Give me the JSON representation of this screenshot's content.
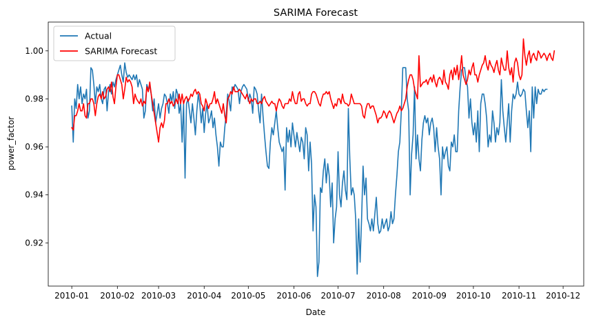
{
  "chart_data": {
    "type": "line",
    "title": "SARIMA Forecast",
    "xlabel": "Date",
    "ylabel": "power_factor",
    "x_range": [
      "2009-12-16",
      "2010-12-15"
    ],
    "ylim": [
      0.902,
      1.012
    ],
    "x_ticks": [
      "2010-01-01",
      "2010-02-01",
      "2010-03-01",
      "2010-04-01",
      "2010-05-01",
      "2010-06-01",
      "2010-07-01",
      "2010-08-01",
      "2010-09-01",
      "2010-10-01",
      "2010-11-01",
      "2010-12-01"
    ],
    "x_tick_labels": [
      "2010-01",
      "2010-02",
      "2010-03",
      "2010-04",
      "2010-05",
      "2010-06",
      "2010-07",
      "2010-08",
      "2010-09",
      "2010-10",
      "2010-11",
      "2010-12"
    ],
    "y_ticks": [
      0.92,
      0.94,
      0.96,
      0.98,
      1.0
    ],
    "y_tick_labels": [
      "0.92",
      "0.94",
      "0.96",
      "0.98",
      "1.00"
    ],
    "grid": false,
    "legend_position": "upper-left",
    "series": [
      {
        "name": "Actual",
        "color": "#1f77b4",
        "x_start": "2010-01-01",
        "x_step_days": 1,
        "values": [
          0.977,
          0.962,
          0.98,
          0.976,
          0.986,
          0.98,
          0.985,
          0.978,
          0.982,
          0.98,
          0.984,
          0.972,
          0.975,
          0.993,
          0.992,
          0.986,
          0.978,
          0.985,
          0.983,
          0.986,
          0.98,
          0.978,
          0.984,
          0.985,
          0.975,
          0.983,
          0.986,
          0.982,
          0.987,
          0.985,
          0.988,
          0.99,
          0.992,
          0.994,
          0.99,
          0.987,
          0.995,
          0.991,
          0.989,
          0.99,
          0.989,
          0.988,
          0.99,
          0.988,
          0.99,
          0.985,
          0.988,
          0.986,
          0.984,
          0.972,
          0.975,
          0.986,
          0.984,
          0.985,
          0.982,
          0.975,
          0.98,
          0.97,
          0.974,
          0.978,
          0.972,
          0.976,
          0.978,
          0.982,
          0.981,
          0.978,
          0.974,
          0.982,
          0.979,
          0.983,
          0.976,
          0.984,
          0.982,
          0.974,
          0.978,
          0.962,
          0.978,
          0.947,
          0.978,
          0.98,
          0.975,
          0.97,
          0.978,
          0.972,
          0.965,
          0.975,
          0.982,
          0.978,
          0.97,
          0.976,
          0.966,
          0.974,
          0.978,
          0.97,
          0.972,
          0.975,
          0.968,
          0.972,
          0.965,
          0.96,
          0.952,
          0.962,
          0.96,
          0.96,
          0.968,
          0.974,
          0.982,
          0.979,
          0.975,
          0.985,
          0.984,
          0.986,
          0.985,
          0.984,
          0.978,
          0.983,
          0.985,
          0.986,
          0.985,
          0.984,
          0.979,
          0.982,
          0.98,
          0.974,
          0.985,
          0.984,
          0.982,
          0.975,
          0.97,
          0.982,
          0.973,
          0.965,
          0.958,
          0.952,
          0.951,
          0.962,
          0.968,
          0.965,
          0.97,
          0.975,
          0.968,
          0.962,
          0.96,
          0.958,
          0.96,
          0.942,
          0.968,
          0.962,
          0.967,
          0.96,
          0.97,
          0.965,
          0.96,
          0.966,
          0.962,
          0.958,
          0.964,
          0.962,
          0.955,
          0.968,
          0.965,
          0.95,
          0.962,
          0.953,
          0.925,
          0.94,
          0.935,
          0.906,
          0.912,
          0.943,
          0.941,
          0.95,
          0.955,
          0.945,
          0.953,
          0.948,
          0.935,
          0.945,
          0.92,
          0.93,
          0.935,
          0.958,
          0.94,
          0.935,
          0.945,
          0.95,
          0.942,
          0.938,
          0.976,
          0.955,
          0.94,
          0.943,
          0.94,
          0.93,
          0.907,
          0.93,
          0.912,
          0.93,
          0.952,
          0.94,
          0.947,
          0.93,
          0.928,
          0.925,
          0.93,
          0.925,
          0.932,
          0.939,
          0.928,
          0.924,
          0.925,
          0.93,
          0.926,
          0.928,
          0.93,
          0.925,
          0.927,
          0.933,
          0.928,
          0.93,
          0.94,
          0.948,
          0.958,
          0.962,
          0.975,
          0.993,
          0.993,
          0.993,
          0.98,
          0.975,
          0.94,
          0.957,
          0.965,
          0.985,
          0.955,
          0.965,
          0.955,
          0.95,
          0.963,
          0.97,
          0.973,
          0.97,
          0.972,
          0.965,
          0.97,
          0.972,
          0.968,
          0.958,
          0.968,
          0.96,
          0.955,
          0.94,
          0.96,
          0.955,
          0.958,
          0.96,
          0.952,
          0.95,
          0.962,
          0.96,
          0.965,
          0.958,
          0.958,
          0.975,
          0.985,
          0.992,
          0.993,
          0.993,
          0.988,
          0.985,
          0.972,
          0.98,
          0.97,
          0.965,
          0.97,
          0.962,
          0.975,
          0.958,
          0.978,
          0.982,
          0.982,
          0.978,
          0.972,
          0.96,
          0.965,
          0.962,
          0.975,
          0.97,
          0.962,
          0.968,
          0.965,
          0.97,
          0.988,
          0.975,
          0.968,
          0.962,
          0.97,
          0.978,
          0.962,
          0.975,
          0.982,
          0.98,
          0.982,
          0.987,
          0.982,
          0.981,
          0.982,
          0.984,
          0.983,
          0.975,
          0.968,
          0.975,
          0.958,
          0.985,
          0.972,
          0.985,
          0.978,
          0.984,
          0.982,
          0.982,
          0.984,
          0.983,
          0.984,
          0.984
        ]
      },
      {
        "name": "SARIMA Forecast",
        "color": "#ff0000",
        "x_start": "2010-01-01",
        "x_step_days": 1,
        "values": [
          0.968,
          0.967,
          0.973,
          0.973,
          0.975,
          0.978,
          0.975,
          0.975,
          0.978,
          0.973,
          0.972,
          0.978,
          0.978,
          0.98,
          0.98,
          0.978,
          0.973,
          0.978,
          0.981,
          0.982,
          0.98,
          0.983,
          0.98,
          0.981,
          0.984,
          0.985,
          0.983,
          0.987,
          0.981,
          0.978,
          0.985,
          0.99,
          0.99,
          0.988,
          0.986,
          0.98,
          0.984,
          0.989,
          0.987,
          0.988,
          0.987,
          0.985,
          0.978,
          0.982,
          0.98,
          0.979,
          0.978,
          0.98,
          0.977,
          0.979,
          0.978,
          0.985,
          0.983,
          0.987,
          0.982,
          0.978,
          0.974,
          0.97,
          0.966,
          0.962,
          0.968,
          0.97,
          0.968,
          0.971,
          0.978,
          0.978,
          0.98,
          0.978,
          0.979,
          0.977,
          0.978,
          0.98,
          0.978,
          0.982,
          0.978,
          0.982,
          0.978,
          0.98,
          0.981,
          0.979,
          0.98,
          0.982,
          0.981,
          0.983,
          0.984,
          0.982,
          0.983,
          0.982,
          0.978,
          0.977,
          0.975,
          0.98,
          0.978,
          0.976,
          0.978,
          0.978,
          0.98,
          0.983,
          0.978,
          0.98,
          0.978,
          0.976,
          0.974,
          0.978,
          0.973,
          0.97,
          0.98,
          0.981,
          0.983,
          0.982,
          0.985,
          0.983,
          0.983,
          0.983,
          0.984,
          0.983,
          0.982,
          0.981,
          0.98,
          0.982,
          0.98,
          0.978,
          0.98,
          0.979,
          0.98,
          0.98,
          0.978,
          0.978,
          0.979,
          0.978,
          0.98,
          0.981,
          0.979,
          0.978,
          0.977,
          0.978,
          0.979,
          0.978,
          0.978,
          0.975,
          0.978,
          0.98,
          0.979,
          0.977,
          0.976,
          0.978,
          0.978,
          0.978,
          0.98,
          0.979,
          0.983,
          0.98,
          0.978,
          0.978,
          0.982,
          0.983,
          0.979,
          0.98,
          0.98,
          0.978,
          0.977,
          0.978,
          0.978,
          0.982,
          0.983,
          0.983,
          0.982,
          0.98,
          0.978,
          0.977,
          0.98,
          0.982,
          0.982,
          0.983,
          0.982,
          0.983,
          0.98,
          0.978,
          0.976,
          0.978,
          0.977,
          0.98,
          0.98,
          0.978,
          0.982,
          0.979,
          0.978,
          0.978,
          0.977,
          0.978,
          0.982,
          0.98,
          0.978,
          0.978,
          0.978,
          0.978,
          0.978,
          0.977,
          0.973,
          0.972,
          0.976,
          0.978,
          0.978,
          0.976,
          0.977,
          0.977,
          0.975,
          0.973,
          0.97,
          0.972,
          0.972,
          0.973,
          0.975,
          0.974,
          0.972,
          0.974,
          0.975,
          0.974,
          0.972,
          0.97,
          0.972,
          0.974,
          0.975,
          0.977,
          0.975,
          0.976,
          0.978,
          0.98,
          0.985,
          0.988,
          0.99,
          0.99,
          0.988,
          0.984,
          0.982,
          0.98,
          0.998,
          0.985,
          0.986,
          0.987,
          0.987,
          0.988,
          0.986,
          0.988,
          0.989,
          0.987,
          0.99,
          0.987,
          0.985,
          0.988,
          0.989,
          0.988,
          0.986,
          0.992,
          0.987,
          0.986,
          0.984,
          0.99,
          0.992,
          0.988,
          0.993,
          0.99,
          0.994,
          0.988,
          0.992,
          0.998,
          0.99,
          0.988,
          0.986,
          0.988,
          0.992,
          0.99,
          0.993,
          0.995,
          0.99,
          0.99,
          0.987,
          0.99,
          0.992,
          0.994,
          0.995,
          0.998,
          0.994,
          0.992,
          0.996,
          0.994,
          0.993,
          0.991,
          0.994,
          0.996,
          0.992,
          0.99,
          0.997,
          0.994,
          0.992,
          0.992,
          1.0,
          0.993,
          0.99,
          0.993,
          0.987,
          0.995,
          0.997,
          0.995,
          0.99,
          0.988,
          0.99,
          1.005,
          0.998,
          0.994,
          0.998,
          1.0,
          0.995,
          0.998,
          0.999,
          0.997,
          0.996,
          1.0,
          0.999,
          0.997,
          0.998,
          0.999,
          0.998,
          0.996,
          0.998,
          0.999,
          0.997,
          0.996,
          1.0
        ]
      }
    ]
  }
}
